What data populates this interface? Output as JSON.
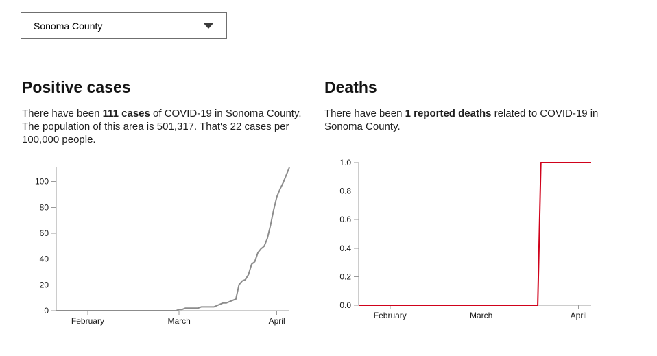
{
  "dropdown": {
    "value": "Sonoma County",
    "icon": "caret-down"
  },
  "sections": {
    "cases": {
      "title": "Positive cases",
      "text_prefix": "There have been ",
      "text_bold": "111 cases",
      "text_suffix": " of COVID-19 in Sonoma County. The population of this area is 501,317. That's 22 cases per 100,000 people."
    },
    "deaths": {
      "title": "Deaths",
      "text_prefix": "There have been ",
      "text_bold": "1 reported deaths",
      "text_suffix": " related to COVID-19 in Sonoma County."
    }
  },
  "chart_data": [
    {
      "name": "positive-cases-over-time",
      "type": "line",
      "color": "#8c8c8c",
      "axis_color": "#9a9a9a",
      "x_domain": [
        "2020-01-22",
        "2020-04-05"
      ],
      "x_ticks": [
        {
          "label": "February",
          "date": "2020-02-01"
        },
        {
          "label": "March",
          "date": "2020-03-01"
        },
        {
          "label": "April",
          "date": "2020-04-01"
        }
      ],
      "y_ticks": [
        {
          "label": "0",
          "value": 0
        },
        {
          "label": "20",
          "value": 20
        },
        {
          "label": "40",
          "value": 40
        },
        {
          "label": "60",
          "value": 60
        },
        {
          "label": "80",
          "value": 80
        },
        {
          "label": "100",
          "value": 100
        }
      ],
      "ylim": [
        0,
        111
      ],
      "grid": false,
      "legend": false,
      "series": [
        [
          "2020-01-22",
          0
        ],
        [
          "2020-02-29",
          0
        ],
        [
          "2020-03-01",
          1
        ],
        [
          "2020-03-02",
          1
        ],
        [
          "2020-03-03",
          2
        ],
        [
          "2020-03-07",
          2
        ],
        [
          "2020-03-08",
          3
        ],
        [
          "2020-03-12",
          3
        ],
        [
          "2020-03-13",
          4
        ],
        [
          "2020-03-14",
          5
        ],
        [
          "2020-03-15",
          6
        ],
        [
          "2020-03-16",
          6
        ],
        [
          "2020-03-17",
          7
        ],
        [
          "2020-03-18",
          8
        ],
        [
          "2020-03-19",
          9
        ],
        [
          "2020-03-20",
          20
        ],
        [
          "2020-03-21",
          23
        ],
        [
          "2020-03-22",
          24
        ],
        [
          "2020-03-23",
          28
        ],
        [
          "2020-03-24",
          36
        ],
        [
          "2020-03-25",
          38
        ],
        [
          "2020-03-26",
          45
        ],
        [
          "2020-03-27",
          48
        ],
        [
          "2020-03-28",
          50
        ],
        [
          "2020-03-29",
          56
        ],
        [
          "2020-03-30",
          66
        ],
        [
          "2020-03-31",
          78
        ],
        [
          "2020-04-01",
          88
        ],
        [
          "2020-04-02",
          94
        ],
        [
          "2020-04-03",
          99
        ],
        [
          "2020-04-04",
          105
        ],
        [
          "2020-04-05",
          111
        ]
      ]
    },
    {
      "name": "deaths-over-time",
      "type": "line",
      "color": "#d0021b",
      "axis_color": "#9a9a9a",
      "x_domain": [
        "2020-01-22",
        "2020-04-05"
      ],
      "x_ticks": [
        {
          "label": "February",
          "date": "2020-02-01"
        },
        {
          "label": "March",
          "date": "2020-03-01"
        },
        {
          "label": "April",
          "date": "2020-04-01"
        }
      ],
      "y_ticks": [
        {
          "label": "0.0",
          "value": 0
        },
        {
          "label": "0.2",
          "value": 0.2
        },
        {
          "label": "0.4",
          "value": 0.4
        },
        {
          "label": "0.6",
          "value": 0.6
        },
        {
          "label": "0.8",
          "value": 0.8
        },
        {
          "label": "1.0",
          "value": 1
        }
      ],
      "ylim": [
        0,
        1
      ],
      "grid": false,
      "legend": false,
      "series": [
        [
          "2020-01-22",
          0
        ],
        [
          "2020-03-19",
          0
        ],
        [
          "2020-03-20",
          1
        ],
        [
          "2020-04-05",
          1
        ]
      ]
    }
  ]
}
